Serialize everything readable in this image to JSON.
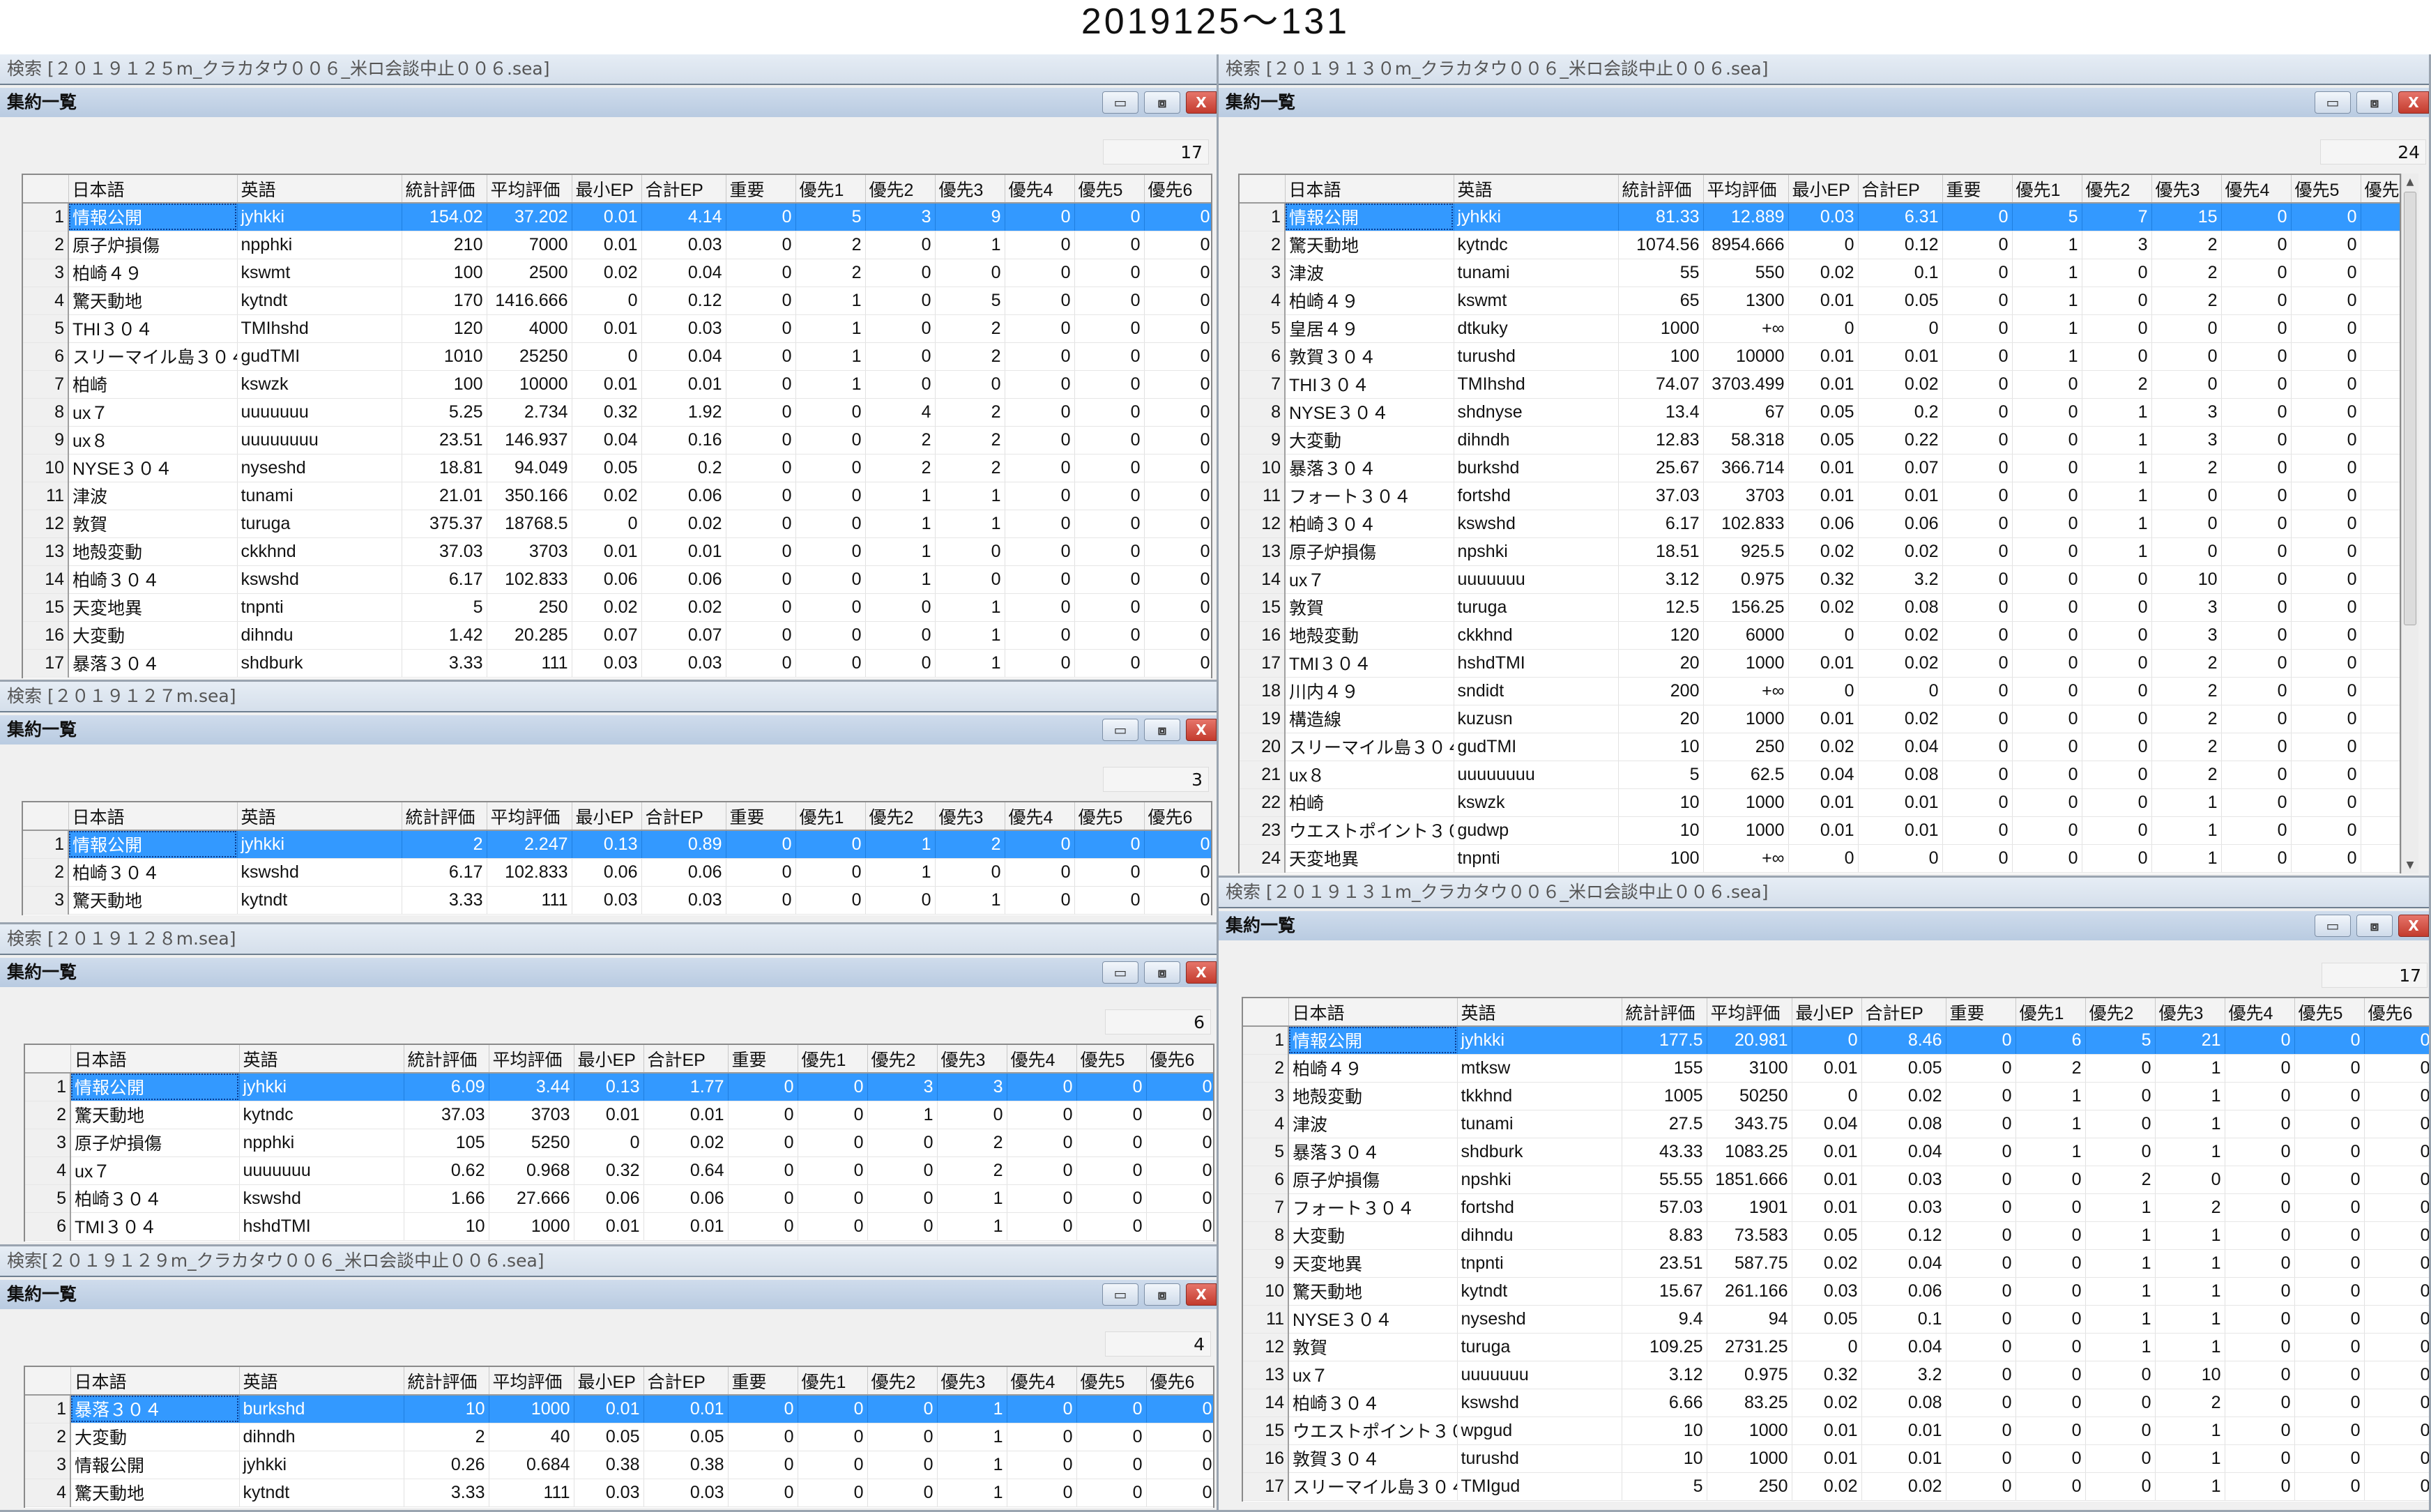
{
  "page_title": "2019125～131",
  "columns": [
    "",
    "日本語",
    "英語",
    "統計評価",
    "平均評価",
    "最小EP",
    "合計EP",
    "重要",
    "優先1",
    "優先2",
    "優先3",
    "優先4",
    "優先5",
    "優先6"
  ],
  "window_buttons": {
    "minimize_icon": "▭",
    "restore_icon": "⧈",
    "close_icon": "X"
  },
  "colors": {
    "selected_row": "#3399ff",
    "close_button": "#c9463d",
    "title_bar": "#c5d6ea"
  },
  "panels": [
    {
      "search_title": "検索 [２０１９１２５m_クラカタウ００６_米ロ会談中止００６.sea]",
      "window_title": "集約一覧",
      "count": "17",
      "rows": [
        [
          "1",
          "情報公開",
          "jyhkki",
          "154.02",
          "37.202",
          "0.01",
          "4.14",
          "0",
          "5",
          "3",
          "9",
          "0",
          "0",
          "0"
        ],
        [
          "2",
          "原子炉損傷",
          "npphki",
          "210",
          "7000",
          "0.01",
          "0.03",
          "0",
          "2",
          "0",
          "1",
          "0",
          "0",
          "0"
        ],
        [
          "3",
          "柏崎４９",
          "kswmt",
          "100",
          "2500",
          "0.02",
          "0.04",
          "0",
          "2",
          "0",
          "0",
          "0",
          "0",
          "0"
        ],
        [
          "4",
          "驚天動地",
          "kytndt",
          "170",
          "1416.666",
          "0",
          "0.12",
          "0",
          "1",
          "0",
          "5",
          "0",
          "0",
          "0"
        ],
        [
          "5",
          "THI３０４",
          "TMIhshd",
          "120",
          "4000",
          "0.01",
          "0.03",
          "0",
          "1",
          "0",
          "2",
          "0",
          "0",
          "0"
        ],
        [
          "6",
          "スリーマイル島３０４",
          "gudTMI",
          "1010",
          "25250",
          "0",
          "0.04",
          "0",
          "1",
          "0",
          "2",
          "0",
          "0",
          "0"
        ],
        [
          "7",
          "柏崎",
          "kswzk",
          "100",
          "10000",
          "0.01",
          "0.01",
          "0",
          "1",
          "0",
          "0",
          "0",
          "0",
          "0"
        ],
        [
          "8",
          "ux７",
          "uuuuuuu",
          "5.25",
          "2.734",
          "0.32",
          "1.92",
          "0",
          "0",
          "4",
          "2",
          "0",
          "0",
          "0"
        ],
        [
          "9",
          "ux８",
          "uuuuuuuu",
          "23.51",
          "146.937",
          "0.04",
          "0.16",
          "0",
          "0",
          "2",
          "2",
          "0",
          "0",
          "0"
        ],
        [
          "10",
          "NYSE３０４",
          "nyseshd",
          "18.81",
          "94.049",
          "0.05",
          "0.2",
          "0",
          "0",
          "2",
          "2",
          "0",
          "0",
          "0"
        ],
        [
          "11",
          "津波",
          "tunami",
          "21.01",
          "350.166",
          "0.02",
          "0.06",
          "0",
          "0",
          "1",
          "1",
          "0",
          "0",
          "0"
        ],
        [
          "12",
          "敦賀",
          "turuga",
          "375.37",
          "18768.5",
          "0",
          "0.02",
          "0",
          "0",
          "1",
          "1",
          "0",
          "0",
          "0"
        ],
        [
          "13",
          "地殻変動",
          "ckkhnd",
          "37.03",
          "3703",
          "0.01",
          "0.01",
          "0",
          "0",
          "1",
          "0",
          "0",
          "0",
          "0"
        ],
        [
          "14",
          "柏崎３０４",
          "kswshd",
          "6.17",
          "102.833",
          "0.06",
          "0.06",
          "0",
          "0",
          "1",
          "0",
          "0",
          "0",
          "0"
        ],
        [
          "15",
          "天変地異",
          "tnpnti",
          "5",
          "250",
          "0.02",
          "0.02",
          "0",
          "0",
          "0",
          "1",
          "0",
          "0",
          "0"
        ],
        [
          "16",
          "大変動",
          "dihndu",
          "1.42",
          "20.285",
          "0.07",
          "0.07",
          "0",
          "0",
          "0",
          "1",
          "0",
          "0",
          "0"
        ],
        [
          "17",
          "暴落３０４",
          "shdburk",
          "3.33",
          "111",
          "0.03",
          "0.03",
          "0",
          "0",
          "0",
          "1",
          "0",
          "0",
          "0"
        ]
      ]
    },
    {
      "search_title": "検索 [２０１９１２７m.sea]",
      "window_title": "集約一覧",
      "count": "3",
      "rows": [
        [
          "1",
          "情報公開",
          "jyhkki",
          "2",
          "2.247",
          "0.13",
          "0.89",
          "0",
          "0",
          "1",
          "2",
          "0",
          "0",
          "0"
        ],
        [
          "2",
          "柏崎３０４",
          "kswshd",
          "6.17",
          "102.833",
          "0.06",
          "0.06",
          "0",
          "0",
          "1",
          "0",
          "0",
          "0",
          "0"
        ],
        [
          "3",
          "驚天動地",
          "kytndt",
          "3.33",
          "111",
          "0.03",
          "0.03",
          "0",
          "0",
          "0",
          "1",
          "0",
          "0",
          "0"
        ]
      ]
    },
    {
      "search_title": "検索 [２０１９１２８m.sea]",
      "window_title": "集約一覧",
      "count": "6",
      "rows": [
        [
          "1",
          "情報公開",
          "jyhkki",
          "6.09",
          "3.44",
          "0.13",
          "1.77",
          "0",
          "0",
          "3",
          "3",
          "0",
          "0",
          "0"
        ],
        [
          "2",
          "驚天動地",
          "kytndc",
          "37.03",
          "3703",
          "0.01",
          "0.01",
          "0",
          "0",
          "1",
          "0",
          "0",
          "0",
          "0"
        ],
        [
          "3",
          "原子炉損傷",
          "npphki",
          "105",
          "5250",
          "0",
          "0.02",
          "0",
          "0",
          "0",
          "2",
          "0",
          "0",
          "0"
        ],
        [
          "4",
          "ux７",
          "uuuuuuu",
          "0.62",
          "0.968",
          "0.32",
          "0.64",
          "0",
          "0",
          "0",
          "2",
          "0",
          "0",
          "0"
        ],
        [
          "5",
          "柏崎３０４",
          "kswshd",
          "1.66",
          "27.666",
          "0.06",
          "0.06",
          "0",
          "0",
          "0",
          "1",
          "0",
          "0",
          "0"
        ],
        [
          "6",
          "TMI３０４",
          "hshdTMI",
          "10",
          "1000",
          "0.01",
          "0.01",
          "0",
          "0",
          "0",
          "1",
          "0",
          "0",
          "0"
        ]
      ]
    },
    {
      "search_title": "検索[２０１９１２９m_クラカタウ００６_米ロ会談中止００６.sea]",
      "window_title": "集約一覧",
      "count": "4",
      "rows": [
        [
          "1",
          "暴落３０４",
          "burkshd",
          "10",
          "1000",
          "0.01",
          "0.01",
          "0",
          "0",
          "0",
          "1",
          "0",
          "0",
          "0"
        ],
        [
          "2",
          "大変動",
          "dihndh",
          "2",
          "40",
          "0.05",
          "0.05",
          "0",
          "0",
          "0",
          "1",
          "0",
          "0",
          "0"
        ],
        [
          "3",
          "情報公開",
          "jyhkki",
          "0.26",
          "0.684",
          "0.38",
          "0.38",
          "0",
          "0",
          "0",
          "1",
          "0",
          "0",
          "0"
        ],
        [
          "4",
          "驚天動地",
          "kytndt",
          "3.33",
          "111",
          "0.03",
          "0.03",
          "0",
          "0",
          "0",
          "1",
          "0",
          "0",
          "0"
        ]
      ]
    },
    {
      "search_title": "検索 [２０１９１３０m_クラカタウ００６_米ロ会談中止００６.sea]",
      "window_title": "集約一覧",
      "count": "24",
      "last_column_label": "優先",
      "rows": [
        [
          "1",
          "情報公開",
          "jyhkki",
          "81.33",
          "12.889",
          "0.03",
          "6.31",
          "0",
          "5",
          "7",
          "15",
          "0",
          "0",
          ""
        ],
        [
          "2",
          "驚天動地",
          "kytndc",
          "1074.56",
          "8954.666",
          "0",
          "0.12",
          "0",
          "1",
          "3",
          "2",
          "0",
          "0",
          ""
        ],
        [
          "3",
          "津波",
          "tunami",
          "55",
          "550",
          "0.02",
          "0.1",
          "0",
          "1",
          "0",
          "2",
          "0",
          "0",
          ""
        ],
        [
          "4",
          "柏崎４９",
          "kswmt",
          "65",
          "1300",
          "0.01",
          "0.05",
          "0",
          "1",
          "0",
          "2",
          "0",
          "0",
          ""
        ],
        [
          "5",
          "皇居４９",
          "dtkuky",
          "1000",
          "+∞",
          "0",
          "0",
          "0",
          "1",
          "0",
          "0",
          "0",
          "0",
          ""
        ],
        [
          "6",
          "敦賀３０４",
          "turushd",
          "100",
          "10000",
          "0.01",
          "0.01",
          "0",
          "1",
          "0",
          "0",
          "0",
          "0",
          ""
        ],
        [
          "7",
          "THI３０４",
          "TMIhshd",
          "74.07",
          "3703.499",
          "0.01",
          "0.02",
          "0",
          "0",
          "2",
          "0",
          "0",
          "0",
          ""
        ],
        [
          "8",
          "NYSE３０４",
          "shdnyse",
          "13.4",
          "67",
          "0.05",
          "0.2",
          "0",
          "0",
          "1",
          "3",
          "0",
          "0",
          ""
        ],
        [
          "9",
          "大変動",
          "dihndh",
          "12.83",
          "58.318",
          "0.05",
          "0.22",
          "0",
          "0",
          "1",
          "3",
          "0",
          "0",
          ""
        ],
        [
          "10",
          "暴落３０４",
          "burkshd",
          "25.67",
          "366.714",
          "0.01",
          "0.07",
          "0",
          "0",
          "1",
          "2",
          "0",
          "0",
          ""
        ],
        [
          "11",
          "フォート３０４",
          "fortshd",
          "37.03",
          "3703",
          "0.01",
          "0.01",
          "0",
          "0",
          "1",
          "0",
          "0",
          "0",
          ""
        ],
        [
          "12",
          "柏崎３０４",
          "kswshd",
          "6.17",
          "102.833",
          "0.06",
          "0.06",
          "0",
          "0",
          "1",
          "0",
          "0",
          "0",
          ""
        ],
        [
          "13",
          "原子炉損傷",
          "npshki",
          "18.51",
          "925.5",
          "0.02",
          "0.02",
          "0",
          "0",
          "1",
          "0",
          "0",
          "0",
          ""
        ],
        [
          "14",
          "ux７",
          "uuuuuuu",
          "3.12",
          "0.975",
          "0.32",
          "3.2",
          "0",
          "0",
          "0",
          "10",
          "0",
          "0",
          ""
        ],
        [
          "15",
          "敦賀",
          "turuga",
          "12.5",
          "156.25",
          "0.02",
          "0.08",
          "0",
          "0",
          "0",
          "3",
          "0",
          "0",
          ""
        ],
        [
          "16",
          "地殻変動",
          "ckkhnd",
          "120",
          "6000",
          "0",
          "0.02",
          "0",
          "0",
          "0",
          "3",
          "0",
          "0",
          ""
        ],
        [
          "17",
          "TMI３０４",
          "hshdTMI",
          "20",
          "1000",
          "0.01",
          "0.02",
          "0",
          "0",
          "0",
          "2",
          "0",
          "0",
          ""
        ],
        [
          "18",
          "川内４９",
          "sndidt",
          "200",
          "+∞",
          "0",
          "0",
          "0",
          "0",
          "0",
          "2",
          "0",
          "0",
          ""
        ],
        [
          "19",
          "構造線",
          "kuzusn",
          "20",
          "1000",
          "0.01",
          "0.02",
          "0",
          "0",
          "0",
          "2",
          "0",
          "0",
          ""
        ],
        [
          "20",
          "スリーマイル島３０４",
          "gudTMI",
          "10",
          "250",
          "0.02",
          "0.04",
          "0",
          "0",
          "0",
          "2",
          "0",
          "0",
          ""
        ],
        [
          "21",
          "ux８",
          "uuuuuuuu",
          "5",
          "62.5",
          "0.04",
          "0.08",
          "0",
          "0",
          "0",
          "2",
          "0",
          "0",
          ""
        ],
        [
          "22",
          "柏崎",
          "kswzk",
          "10",
          "1000",
          "0.01",
          "0.01",
          "0",
          "0",
          "0",
          "1",
          "0",
          "0",
          ""
        ],
        [
          "23",
          "ウエストポイント３０４",
          "gudwp",
          "10",
          "1000",
          "0.01",
          "0.01",
          "0",
          "0",
          "0",
          "1",
          "0",
          "0",
          ""
        ],
        [
          "24",
          "天変地異",
          "tnpnti",
          "100",
          "+∞",
          "0",
          "0",
          "0",
          "0",
          "0",
          "1",
          "0",
          "0",
          ""
        ]
      ]
    },
    {
      "search_title": "検索 [２０１９１３１m_クラカタウ００６_米ロ会談中止００６.sea]",
      "window_title": "集約一覧",
      "count": "17",
      "rows": [
        [
          "1",
          "情報公開",
          "jyhkki",
          "177.5",
          "20.981",
          "0",
          "8.46",
          "0",
          "6",
          "5",
          "21",
          "0",
          "0",
          "0"
        ],
        [
          "2",
          "柏崎４９",
          "mtksw",
          "155",
          "3100",
          "0.01",
          "0.05",
          "0",
          "2",
          "0",
          "1",
          "0",
          "0",
          "0"
        ],
        [
          "3",
          "地殻変動",
          "tkkhnd",
          "1005",
          "50250",
          "0",
          "0.02",
          "0",
          "1",
          "0",
          "1",
          "0",
          "0",
          "0"
        ],
        [
          "4",
          "津波",
          "tunami",
          "27.5",
          "343.75",
          "0.04",
          "0.08",
          "0",
          "1",
          "0",
          "1",
          "0",
          "0",
          "0"
        ],
        [
          "5",
          "暴落３０４",
          "shdburk",
          "43.33",
          "1083.25",
          "0.01",
          "0.04",
          "0",
          "1",
          "0",
          "1",
          "0",
          "0",
          "0"
        ],
        [
          "6",
          "原子炉損傷",
          "npshki",
          "55.55",
          "1851.666",
          "0.01",
          "0.03",
          "0",
          "0",
          "2",
          "0",
          "0",
          "0",
          "0"
        ],
        [
          "7",
          "フォート３０４",
          "fortshd",
          "57.03",
          "1901",
          "0.01",
          "0.03",
          "0",
          "0",
          "1",
          "2",
          "0",
          "0",
          "0"
        ],
        [
          "8",
          "大変動",
          "dihndu",
          "8.83",
          "73.583",
          "0.05",
          "0.12",
          "0",
          "0",
          "1",
          "1",
          "0",
          "0",
          "0"
        ],
        [
          "9",
          "天変地異",
          "tnpnti",
          "23.51",
          "587.75",
          "0.02",
          "0.04",
          "0",
          "0",
          "1",
          "1",
          "0",
          "0",
          "0"
        ],
        [
          "10",
          "驚天動地",
          "kytndt",
          "15.67",
          "261.166",
          "0.03",
          "0.06",
          "0",
          "0",
          "1",
          "1",
          "0",
          "0",
          "0"
        ],
        [
          "11",
          "NYSE３０４",
          "nyseshd",
          "9.4",
          "94",
          "0.05",
          "0.1",
          "0",
          "0",
          "1",
          "1",
          "0",
          "0",
          "0"
        ],
        [
          "12",
          "敦賀",
          "turuga",
          "109.25",
          "2731.25",
          "0",
          "0.04",
          "0",
          "0",
          "1",
          "1",
          "0",
          "0",
          "0"
        ],
        [
          "13",
          "ux７",
          "uuuuuuu",
          "3.12",
          "0.975",
          "0.32",
          "3.2",
          "0",
          "0",
          "0",
          "10",
          "0",
          "0",
          "0"
        ],
        [
          "14",
          "柏崎３０４",
          "kswshd",
          "6.66",
          "83.25",
          "0.02",
          "0.08",
          "0",
          "0",
          "0",
          "2",
          "0",
          "0",
          "0"
        ],
        [
          "15",
          "ウエストポイント３０４",
          "wpgud",
          "10",
          "1000",
          "0.01",
          "0.01",
          "0",
          "0",
          "0",
          "1",
          "0",
          "0",
          "0"
        ],
        [
          "16",
          "敦賀３０４",
          "turushd",
          "10",
          "1000",
          "0.01",
          "0.01",
          "0",
          "0",
          "0",
          "1",
          "0",
          "0",
          "0"
        ],
        [
          "17",
          "スリーマイル島３０４",
          "TMIgud",
          "5",
          "250",
          "0.02",
          "0.02",
          "0",
          "0",
          "0",
          "1",
          "0",
          "0",
          "0"
        ]
      ]
    }
  ]
}
